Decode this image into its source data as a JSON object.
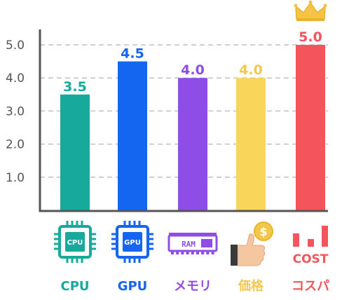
{
  "chart_data": {
    "type": "bar",
    "categories": [
      "CPU",
      "GPU",
      "メモリ",
      "価格",
      "コスパ"
    ],
    "values": [
      3.5,
      4.5,
      4.0,
      4.0,
      5.0
    ],
    "data_labels": [
      "3.5",
      "4.5",
      "4.0",
      "4.0",
      "5.0"
    ],
    "colors": [
      "#17a99b",
      "#1465f0",
      "#8f4de8",
      "#f9d65a",
      "#f4545c"
    ],
    "label_colors": [
      "#17a99b",
      "#1465f0",
      "#8f4de8",
      "#f2c94c",
      "#f4545c"
    ],
    "icons": [
      "cpu-chip-icon",
      "gpu-chip-icon",
      "ram-module-icon",
      "thumbs-up-coin-icon",
      "cost-bars-icon"
    ],
    "icon_texts": [
      "CPU",
      "GPU",
      "RAM",
      "$",
      "COST"
    ],
    "highlight_icon": "crown-icon",
    "yticks": [
      "1.0",
      "2.0",
      "3.0",
      "4.0",
      "5.0"
    ],
    "ylim": [
      0,
      5.5
    ],
    "grid": true
  }
}
